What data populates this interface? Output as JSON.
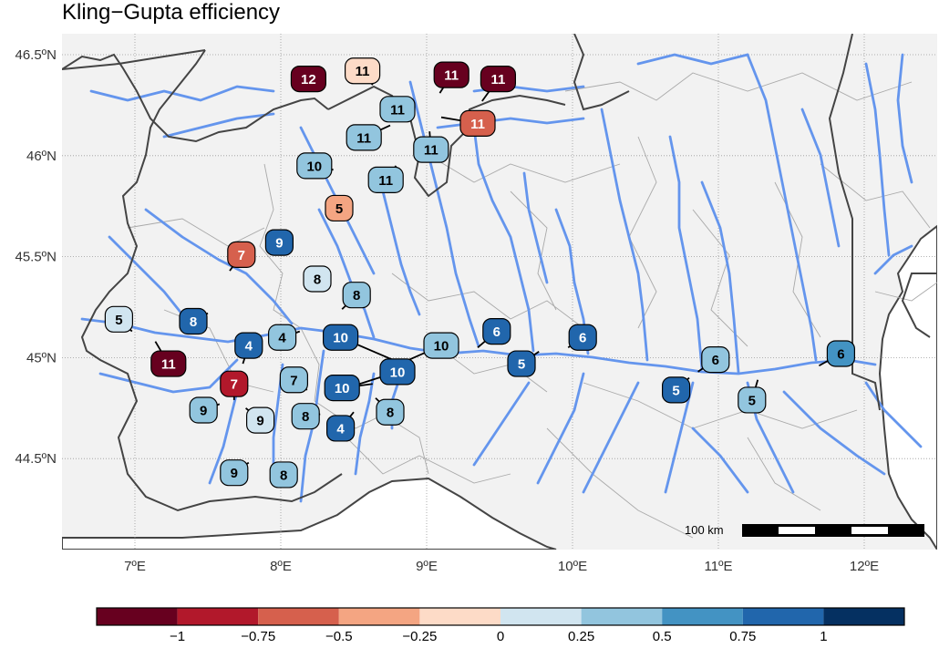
{
  "title": "Kling−Gupta efficiency",
  "lon_ticks": [
    "7ºE",
    "8ºE",
    "9ºE",
    "10ºE",
    "11ºE",
    "12ºE"
  ],
  "lat_ticks": [
    "46.5ºN",
    "46ºN",
    "45.5ºN",
    "45ºN",
    "44.5ºN"
  ],
  "scale_bar_label": "100 km",
  "colorbar": {
    "tick_labels": [
      "−1",
      "−0.75",
      "−0.5",
      "−0.25",
      "0",
      "0.25",
      "0.5",
      "0.75",
      "1"
    ],
    "colors": [
      "#67001f",
      "#b2182b",
      "#d6604d",
      "#f4a582",
      "#fddbc7",
      "#d1e5f0",
      "#92c5de",
      "#4393c3",
      "#2166ac",
      "#053061"
    ]
  },
  "colors": {
    "land": "#f2f2f2",
    "river": "#6495ed",
    "border": "#444444",
    "admin": "#a0a0a0",
    "sea": "#ffffff"
  },
  "chart_data": {
    "type": "map",
    "metric": "Kling−Gupta efficiency",
    "lon_range": [
      6.5,
      12.5
    ],
    "lat_range": [
      44.05,
      46.62
    ],
    "color_breaks": [
      -1.25,
      -1,
      -0.75,
      -0.5,
      -0.25,
      0,
      0.25,
      0.5,
      0.75,
      1,
      1.25
    ],
    "stations": [
      {
        "label": "12",
        "lon": 8.19,
        "lat": 46.38,
        "class": 0,
        "slon": 8.11,
        "slat": 46.33
      },
      {
        "label": "11",
        "lon": 8.56,
        "lat": 46.42,
        "class": 4,
        "slon": 8.63,
        "slat": 46.35
      },
      {
        "label": "11",
        "lon": 9.17,
        "lat": 46.4,
        "class": 0,
        "slon": 9.09,
        "slat": 46.31
      },
      {
        "label": "11",
        "lon": 9.49,
        "lat": 46.38,
        "class": 0,
        "slon": 9.38,
        "slat": 46.27
      },
      {
        "label": "11",
        "lon": 8.8,
        "lat": 46.23,
        "class": 6,
        "slon": 8.78,
        "slat": 46.27
      },
      {
        "label": "11",
        "lon": 9.35,
        "lat": 46.16,
        "class": 2,
        "slon": 9.1,
        "slat": 46.19
      },
      {
        "label": "11",
        "lon": 8.57,
        "lat": 46.09,
        "class": 6,
        "slon": 8.75,
        "slat": 46.15
      },
      {
        "label": "11",
        "lon": 9.03,
        "lat": 46.03,
        "class": 6,
        "slon": 9.02,
        "slat": 46.12
      },
      {
        "label": "10",
        "lon": 8.23,
        "lat": 45.95,
        "class": 6,
        "slon": 8.36,
        "slat": 45.93
      },
      {
        "label": "11",
        "lon": 8.72,
        "lat": 45.88,
        "class": 6,
        "slon": 8.79,
        "slat": 45.95
      },
      {
        "label": "5",
        "lon": 8.4,
        "lat": 45.74,
        "class": 3,
        "slon": 8.32,
        "slat": 45.71
      },
      {
        "label": "9",
        "lon": 7.99,
        "lat": 45.57,
        "class": 8,
        "slon": 7.91,
        "slat": 45.52
      },
      {
        "label": "7",
        "lon": 7.73,
        "lat": 45.51,
        "class": 2,
        "slon": 7.65,
        "slat": 45.43
      },
      {
        "label": "8",
        "lon": 8.25,
        "lat": 45.39,
        "class": 5,
        "slon": 8.33,
        "slat": 45.34
      },
      {
        "label": "8",
        "lon": 8.52,
        "lat": 45.31,
        "class": 6,
        "slon": 8.42,
        "slat": 45.24
      },
      {
        "label": "5",
        "lon": 6.89,
        "lat": 45.19,
        "class": 5,
        "slon": 6.98,
        "slat": 45.13
      },
      {
        "label": "8",
        "lon": 7.4,
        "lat": 45.18,
        "class": 8,
        "slon": 7.5,
        "slat": 45.22
      },
      {
        "label": "11",
        "lon": 7.23,
        "lat": 44.97,
        "class": 0,
        "slon": 7.14,
        "slat": 45.08
      },
      {
        "label": "4",
        "lon": 7.78,
        "lat": 45.06,
        "class": 8,
        "slon": 7.74,
        "slat": 44.97
      },
      {
        "label": "4",
        "lon": 8.01,
        "lat": 45.1,
        "class": 6,
        "slon": 8.13,
        "slat": 45.13
      },
      {
        "label": "10",
        "lon": 8.41,
        "lat": 45.1,
        "class": 8,
        "slon": 8.83,
        "slat": 44.97
      },
      {
        "label": "10",
        "lon": 9.1,
        "lat": 45.06,
        "class": 6,
        "slon": 8.85,
        "slat": 44.98
      },
      {
        "label": "6",
        "lon": 9.48,
        "lat": 45.13,
        "class": 8,
        "slon": 9.35,
        "slat": 45.05
      },
      {
        "label": "6",
        "lon": 10.07,
        "lat": 45.1,
        "class": 8,
        "slon": 9.97,
        "slat": 45.05
      },
      {
        "label": "10",
        "lon": 8.8,
        "lat": 44.93,
        "class": 8,
        "slon": 8.54,
        "slat": 44.87
      },
      {
        "label": "7",
        "lon": 7.68,
        "lat": 44.87,
        "class": 1,
        "slon": 7.68,
        "slat": 44.79
      },
      {
        "label": "7",
        "lon": 8.09,
        "lat": 44.89,
        "class": 6,
        "slon": 8.18,
        "slat": 44.84
      },
      {
        "label": "10",
        "lon": 8.42,
        "lat": 44.85,
        "class": 8,
        "slon": 8.63,
        "slat": 44.87
      },
      {
        "label": "5",
        "lon": 9.65,
        "lat": 44.97,
        "class": 8,
        "slon": 9.77,
        "slat": 45.03
      },
      {
        "label": "6",
        "lon": 10.98,
        "lat": 44.99,
        "class": 6,
        "slon": 10.86,
        "slat": 44.93
      },
      {
        "label": "6",
        "lon": 11.84,
        "lat": 45.02,
        "class": 7,
        "slon": 11.69,
        "slat": 44.96
      },
      {
        "label": "5",
        "lon": 10.71,
        "lat": 44.84,
        "class": 8,
        "slon": 10.8,
        "slat": 44.9
      },
      {
        "label": "5",
        "lon": 11.23,
        "lat": 44.79,
        "class": 6,
        "slon": 11.27,
        "slat": 44.89
      },
      {
        "label": "9",
        "lon": 7.47,
        "lat": 44.74,
        "class": 6,
        "slon": 7.58,
        "slat": 44.77
      },
      {
        "label": "9",
        "lon": 7.86,
        "lat": 44.69,
        "class": 5,
        "slon": 7.76,
        "slat": 44.75
      },
      {
        "label": "8",
        "lon": 8.17,
        "lat": 44.71,
        "class": 6,
        "slon": 8.27,
        "slat": 44.72
      },
      {
        "label": "8",
        "lon": 8.75,
        "lat": 44.73,
        "class": 6,
        "slon": 8.65,
        "slat": 44.8
      },
      {
        "label": "4",
        "lon": 8.41,
        "lat": 44.65,
        "class": 8,
        "slon": 8.5,
        "slat": 44.73
      },
      {
        "label": "9",
        "lon": 7.68,
        "lat": 44.43,
        "class": 6,
        "slon": 7.78,
        "slat": 44.48
      },
      {
        "label": "8",
        "lon": 8.02,
        "lat": 44.42,
        "class": 6,
        "slon": 7.93,
        "slat": 44.45
      }
    ]
  }
}
